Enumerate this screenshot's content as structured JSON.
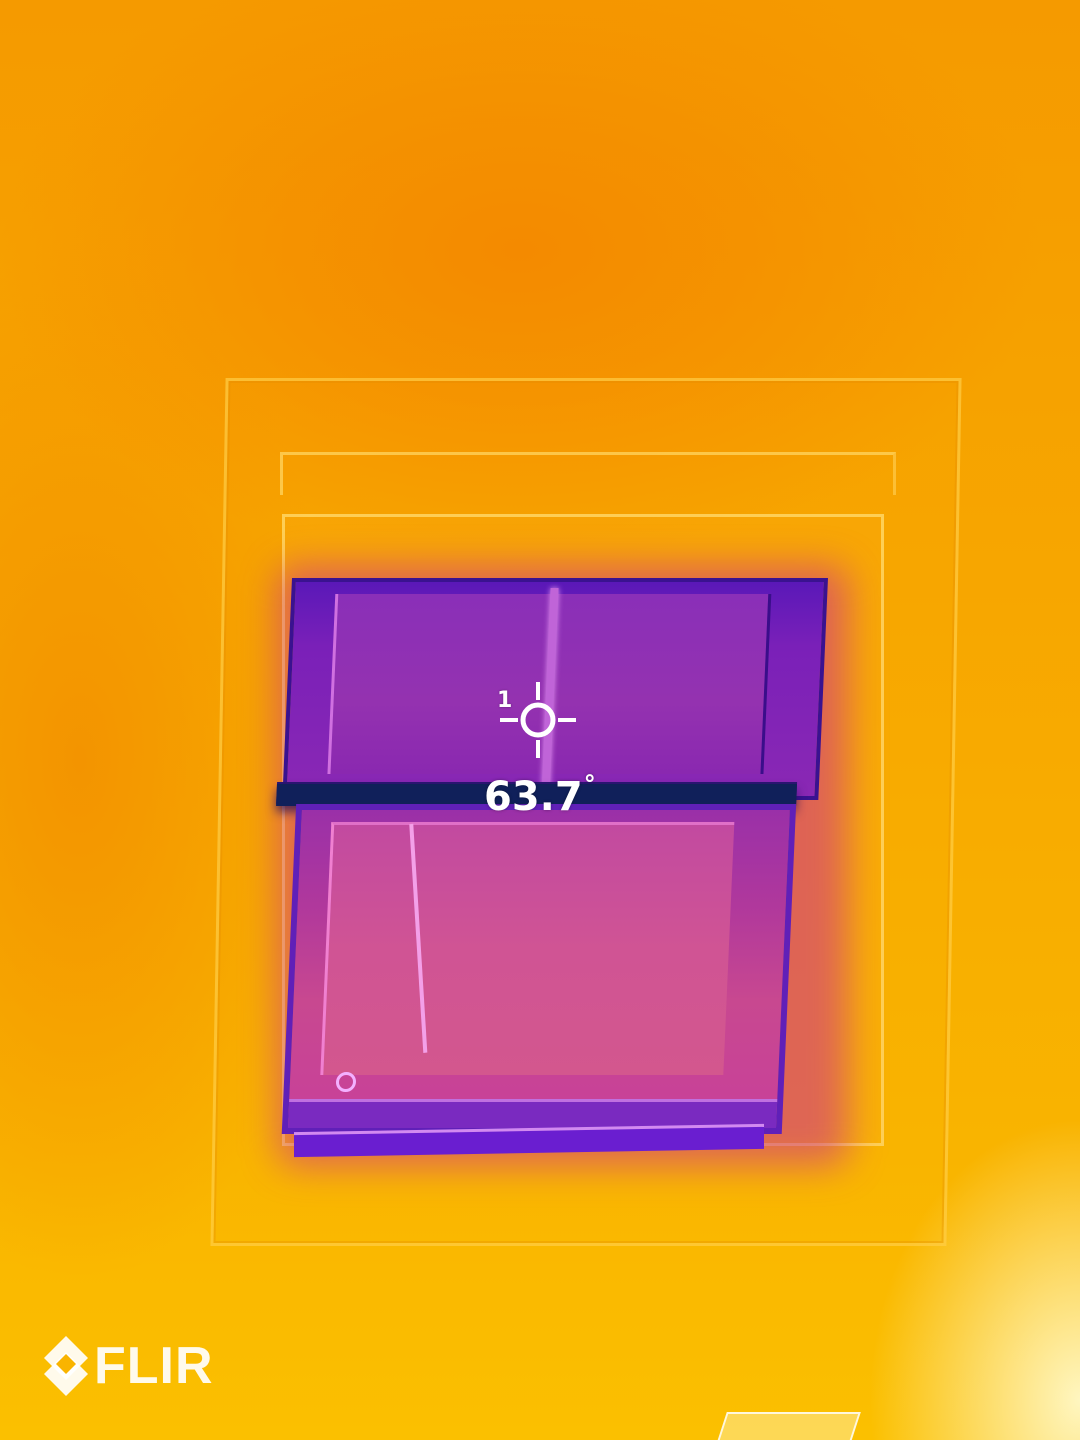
{
  "image": {
    "type": "thermal-camera-view",
    "palette_colors": {
      "hot": "#f7a800",
      "warm": "#f48a00",
      "cool": "#c84890",
      "cold": "#5a18b8",
      "coldest": "#10205a"
    }
  },
  "overlay": {
    "spot_meter_index": "1",
    "temperature_value": "63.7",
    "temperature_unit": "°",
    "reticle_icon": "crosshair-icon"
  },
  "branding": {
    "logo_text": "FLIR",
    "logo_icon": "flir-diamond-icon"
  }
}
